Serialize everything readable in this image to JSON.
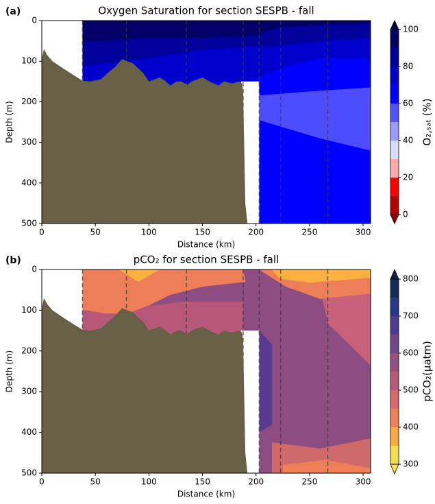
{
  "chart_data": [
    {
      "type": "contour",
      "panel_label": "(a)",
      "title": "Oxygen Saturation for section SESPB - fall",
      "xlabel": "Distance (km)",
      "ylabel": "Depth (m)",
      "xlim": [
        0,
        307
      ],
      "ylim": [
        500,
        0
      ],
      "xticks": [
        0,
        50,
        100,
        150,
        200,
        250,
        300
      ],
      "yticks": [
        0,
        100,
        200,
        300,
        400,
        500
      ],
      "stations": [
        38,
        79,
        135,
        188,
        203,
        223,
        267
      ],
      "colorbar": {
        "label": "O₂,ₛₐₜ (%)",
        "levels": [
          0,
          10,
          20,
          30,
          40,
          50,
          60,
          70,
          80,
          90,
          100
        ],
        "colors": [
          "#b40000",
          "#ff0000",
          "#ffaaaa",
          "#dcdcff",
          "#9a9aff",
          "#5454ff",
          "#0000ff",
          "#0000cc",
          "#00009a",
          "#000066"
        ],
        "extend_colors": [
          "#8a0000",
          "#00004a"
        ],
        "ticks": [
          0,
          20,
          40,
          60,
          80,
          100
        ]
      }
    },
    {
      "type": "contour",
      "panel_label": "(b)",
      "title": "pCO₂ for section SESPB - fall",
      "xlabel": "Distance (km)",
      "ylabel": "Depth (m)",
      "xlim": [
        0,
        307
      ],
      "ylim": [
        500,
        0
      ],
      "xticks": [
        0,
        50,
        100,
        150,
        200,
        250,
        300
      ],
      "yticks": [
        0,
        100,
        200,
        300,
        400,
        500
      ],
      "stations": [
        38,
        79,
        135,
        188,
        203,
        223,
        267
      ],
      "colorbar": {
        "label": "pCO₂(µatm)",
        "levels": [
          300,
          350,
          400,
          450,
          500,
          550,
          600,
          650,
          700,
          750,
          800
        ],
        "colors": [
          "#f5de4e",
          "#f8a93f",
          "#ee8058",
          "#d8686a",
          "#b85878",
          "#964d82",
          "#74448a",
          "#4e3a92",
          "#283886",
          "#152c5a"
        ],
        "extend_colors": [
          "#f6e35a",
          "#0e2447"
        ],
        "ticks": [
          300,
          400,
          500,
          600,
          700,
          800
        ]
      }
    }
  ]
}
